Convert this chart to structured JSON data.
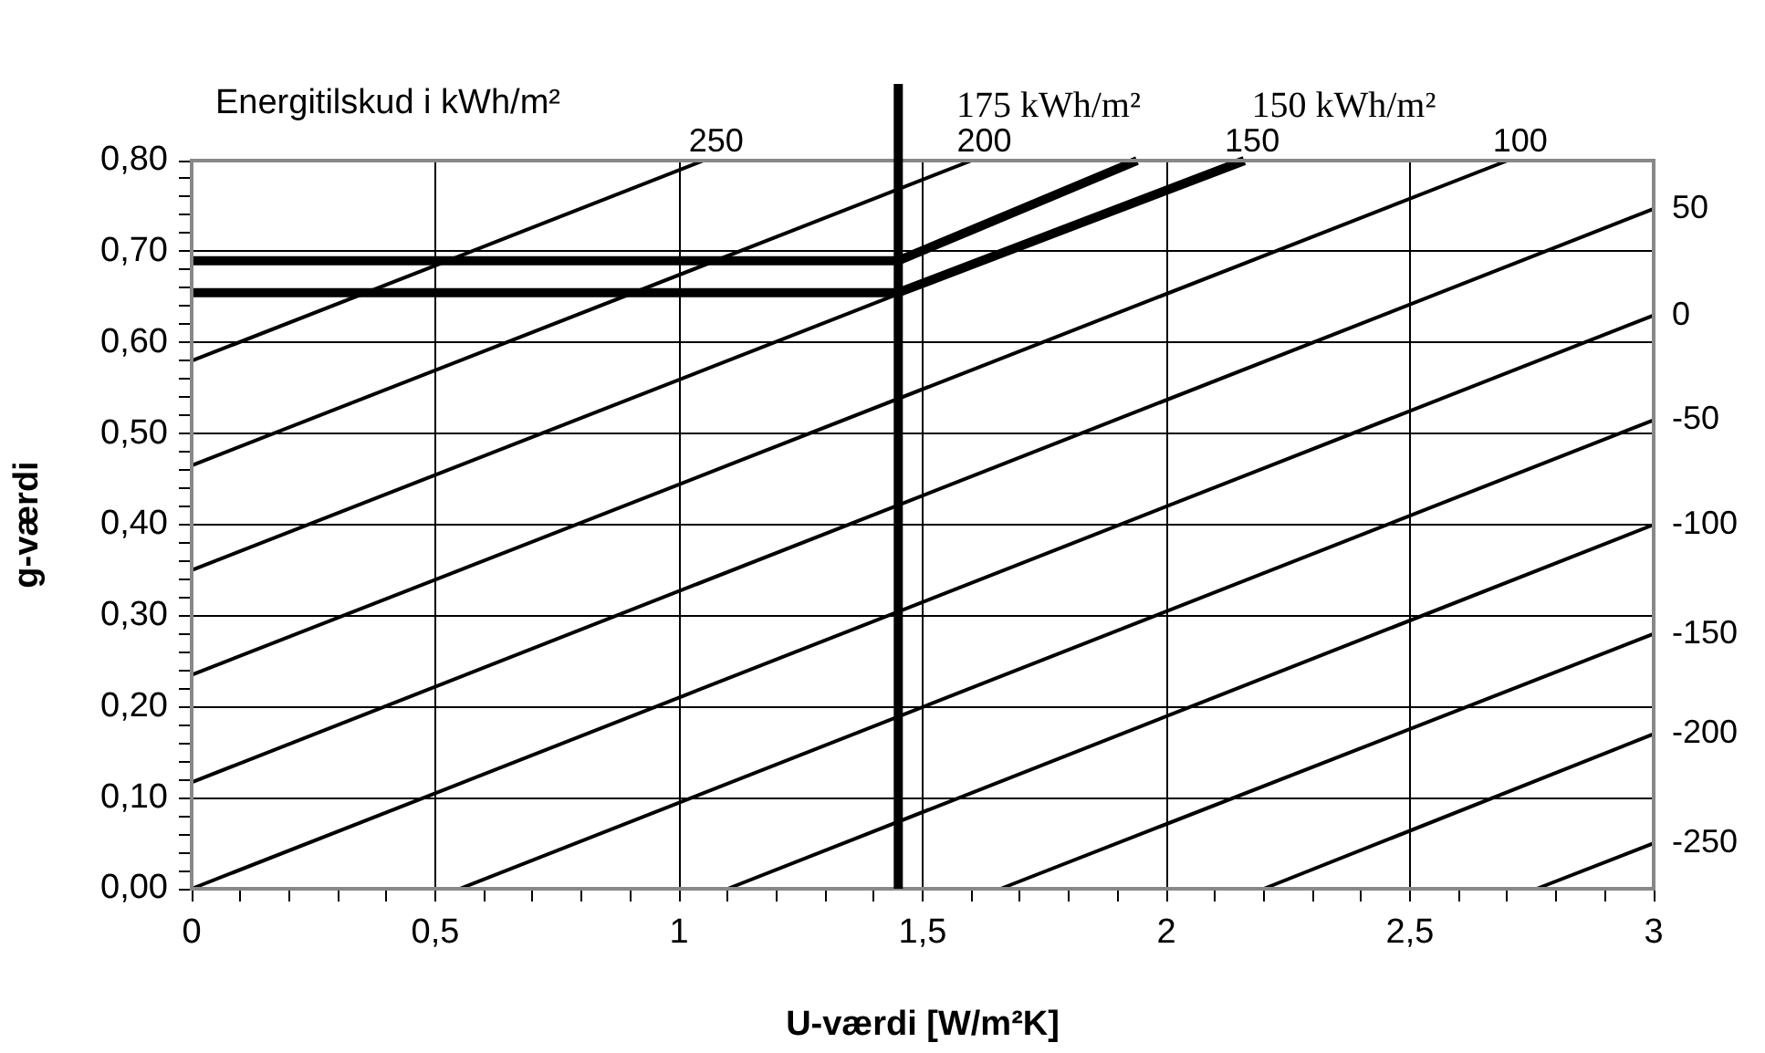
{
  "chart_data": {
    "type": "line",
    "xlabel": "U-værdi [W/m²K]",
    "ylabel": "g-værdi",
    "annotations": [
      "Energitilskud i kWh/m²"
    ],
    "xlim": [
      0,
      3
    ],
    "ylim": [
      0,
      0.8
    ],
    "xticks": [
      0,
      {
        "value": 0.1,
        "label": null
      },
      {
        "value": 0.2,
        "label": null
      },
      {
        "value": 0.3,
        "label": null
      },
      {
        "value": 0.4,
        "label": null
      },
      {
        "value": 0.5,
        "label": "0,5"
      },
      {
        "value": 0.6,
        "label": null
      },
      {
        "value": 0.7,
        "label": null
      },
      {
        "value": 0.8,
        "label": null
      },
      {
        "value": 0.9,
        "label": null
      },
      1,
      {
        "value": 1.1,
        "label": null
      },
      {
        "value": 1.2,
        "label": null
      },
      {
        "value": 1.3,
        "label": null
      },
      {
        "value": 1.4,
        "label": null
      },
      {
        "value": 1.5,
        "label": "1,5"
      },
      {
        "value": 1.6,
        "label": null
      },
      {
        "value": 1.7,
        "label": null
      },
      {
        "value": 1.8,
        "label": null
      },
      {
        "value": 1.9,
        "label": null
      },
      2,
      {
        "value": 2.1,
        "label": null
      },
      {
        "value": 2.2,
        "label": null
      },
      {
        "value": 2.3,
        "label": null
      },
      {
        "value": 2.4,
        "label": null
      },
      {
        "value": 2.5,
        "label": "2,5"
      },
      {
        "value": 2.6,
        "label": null
      },
      {
        "value": 2.7,
        "label": null
      },
      {
        "value": 2.8,
        "label": null
      },
      {
        "value": 2.9,
        "label": null
      },
      3
    ],
    "yticks": [
      {
        "value": 0,
        "label": "0,00"
      },
      {
        "value": 0.02,
        "label": null
      },
      {
        "value": 0.04,
        "label": null
      },
      {
        "value": 0.06,
        "label": null
      },
      {
        "value": 0.08,
        "label": null
      },
      {
        "value": 0.1,
        "label": "0,10"
      },
      {
        "value": 0.12,
        "label": null
      },
      {
        "value": 0.14,
        "label": null
      },
      {
        "value": 0.16,
        "label": null
      },
      {
        "value": 0.18,
        "label": null
      },
      {
        "value": 0.2,
        "label": "0,20"
      },
      {
        "value": 0.22,
        "label": null
      },
      {
        "value": 0.24,
        "label": null
      },
      {
        "value": 0.26,
        "label": null
      },
      {
        "value": 0.28,
        "label": null
      },
      {
        "value": 0.3,
        "label": "0,30"
      },
      {
        "value": 0.32,
        "label": null
      },
      {
        "value": 0.34,
        "label": null
      },
      {
        "value": 0.36,
        "label": null
      },
      {
        "value": 0.38,
        "label": null
      },
      {
        "value": 0.4,
        "label": "0,40"
      },
      {
        "value": 0.42,
        "label": null
      },
      {
        "value": 0.44,
        "label": null
      },
      {
        "value": 0.46,
        "label": null
      },
      {
        "value": 0.48,
        "label": null
      },
      {
        "value": 0.5,
        "label": "0,50"
      },
      {
        "value": 0.52,
        "label": null
      },
      {
        "value": 0.54,
        "label": null
      },
      {
        "value": 0.56,
        "label": null
      },
      {
        "value": 0.58,
        "label": null
      },
      {
        "value": 0.6,
        "label": "0,60"
      },
      {
        "value": 0.62,
        "label": null
      },
      {
        "value": 0.64,
        "label": null
      },
      {
        "value": 0.66,
        "label": null
      },
      {
        "value": 0.68,
        "label": null
      },
      {
        "value": 0.7,
        "label": "0,70"
      },
      {
        "value": 0.72,
        "label": null
      },
      {
        "value": 0.74,
        "label": null
      },
      {
        "value": 0.76,
        "label": null
      },
      {
        "value": 0.78,
        "label": null
      },
      {
        "value": 0.8,
        "label": "0,80"
      }
    ],
    "grid": true,
    "legend": false,
    "marker": "none",
    "line_style": "solid",
    "series": [
      {
        "name": "250",
        "color": "#000000",
        "x": [
          0,
          1.05
        ],
        "values": [
          0.58,
          0.8
        ]
      },
      {
        "name": "200",
        "color": "#000000",
        "x": [
          0,
          1.6
        ],
        "values": [
          0.465,
          0.8
        ]
      },
      {
        "name": "150",
        "color": "#000000",
        "x": [
          0,
          2.15
        ],
        "values": [
          0.35,
          0.8
        ]
      },
      {
        "name": "100",
        "color": "#000000",
        "x": [
          0,
          2.7
        ],
        "values": [
          0.235,
          0.8
        ]
      },
      {
        "name": "50",
        "color": "#000000",
        "x": [
          0,
          3
        ],
        "values": [
          0.117,
          0.747
        ]
      },
      {
        "name": "0",
        "color": "#000000",
        "x": [
          0,
          3
        ],
        "values": [
          0,
          0.63
        ]
      },
      {
        "name": "-50",
        "color": "#000000",
        "x": [
          0.55,
          3
        ],
        "values": [
          0,
          0.515
        ]
      },
      {
        "name": "-100",
        "color": "#000000",
        "x": [
          1.1,
          3
        ],
        "values": [
          0,
          0.4
        ]
      },
      {
        "name": "-150",
        "color": "#000000",
        "x": [
          1.66,
          3
        ],
        "values": [
          0,
          0.28
        ]
      },
      {
        "name": "-200",
        "color": "#000000",
        "x": [
          2.2,
          3
        ],
        "values": [
          0,
          0.17
        ]
      },
      {
        "name": "-250",
        "color": "#000000",
        "x": [
          2.76,
          3
        ],
        "values": [
          0,
          0.05
        ]
      },
      {
        "name": "175 kWh/m²",
        "color": "#000000",
        "x": [
          0,
          1.45,
          1.94
        ],
        "values": [
          0.69,
          0.69,
          0.8
        ]
      },
      {
        "name": "150 kWh/m²",
        "color": "#000000",
        "x": [
          0,
          1.45,
          2.16
        ],
        "values": [
          0.655,
          0.655,
          0.8
        ]
      }
    ],
    "ref_lines": [
      {
        "axis": "x",
        "value": 1.45,
        "color": "#000000"
      }
    ]
  }
}
